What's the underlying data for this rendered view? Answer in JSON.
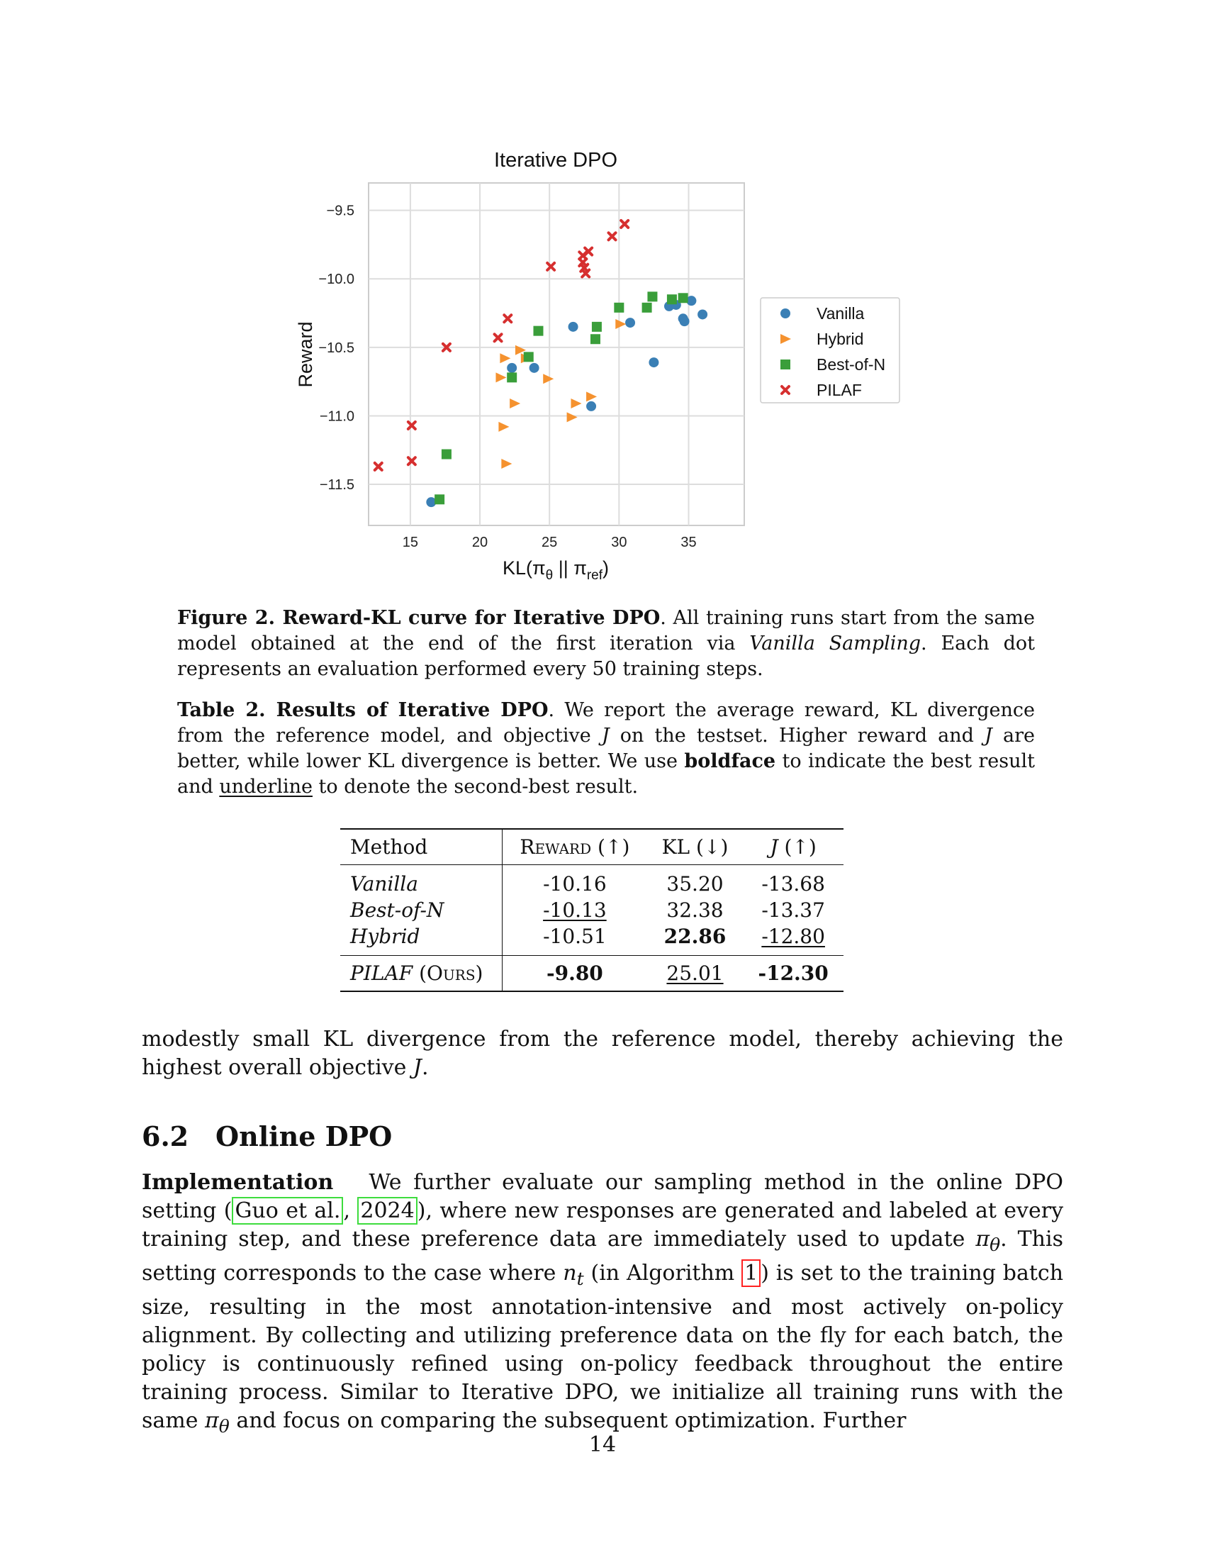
{
  "figure": {
    "chart_data": {
      "type": "scatter",
      "title": "Iterative DPO",
      "xlabel": "KL(πθ || πref)",
      "ylabel": "Reward",
      "xlim": [
        12,
        39
      ],
      "ylim": [
        -11.8,
        -9.3
      ],
      "xticks": [
        15,
        20,
        25,
        30,
        35
      ],
      "yticks": [
        -9.5,
        -10.0,
        -10.5,
        -11.0,
        -11.5
      ],
      "grid": true,
      "legend_position": "right",
      "series": [
        {
          "name": "Vanilla",
          "marker": "circle",
          "color": "#3a7fb5",
          "points": [
            [
              16.5,
              -11.63
            ],
            [
              22.3,
              -10.65
            ],
            [
              23.9,
              -10.65
            ],
            [
              26.7,
              -10.35
            ],
            [
              28.0,
              -10.93
            ],
            [
              30.8,
              -10.32
            ],
            [
              32.5,
              -10.61
            ],
            [
              33.6,
              -10.2
            ],
            [
              34.1,
              -10.19
            ],
            [
              34.6,
              -10.29
            ],
            [
              34.7,
              -10.31
            ],
            [
              35.2,
              -10.16
            ],
            [
              36.0,
              -10.26
            ]
          ]
        },
        {
          "name": "Hybrid",
          "marker": "triangle-right",
          "color": "#f5922f",
          "points": [
            [
              21.5,
              -10.72
            ],
            [
              21.7,
              -11.08
            ],
            [
              21.8,
              -10.58
            ],
            [
              21.9,
              -11.35
            ],
            [
              22.5,
              -10.91
            ],
            [
              22.9,
              -10.52
            ],
            [
              23.3,
              -10.58
            ],
            [
              24.9,
              -10.73
            ],
            [
              26.6,
              -11.01
            ],
            [
              26.9,
              -10.91
            ],
            [
              28.0,
              -10.86
            ],
            [
              30.1,
              -10.33
            ]
          ]
        },
        {
          "name": "Best-of-N",
          "marker": "square",
          "color": "#3a9e3a",
          "points": [
            [
              17.1,
              -11.61
            ],
            [
              17.6,
              -11.28
            ],
            [
              22.3,
              -10.72
            ],
            [
              23.5,
              -10.57
            ],
            [
              24.2,
              -10.38
            ],
            [
              28.3,
              -10.44
            ],
            [
              28.4,
              -10.35
            ],
            [
              30.0,
              -10.21
            ],
            [
              32.0,
              -10.21
            ],
            [
              32.4,
              -10.13
            ],
            [
              33.8,
              -10.15
            ],
            [
              34.6,
              -10.14
            ]
          ]
        },
        {
          "name": "PILAF",
          "marker": "x",
          "color": "#d62f2f",
          "points": [
            [
              12.7,
              -11.37
            ],
            [
              15.1,
              -11.07
            ],
            [
              15.1,
              -11.33
            ],
            [
              17.6,
              -10.5
            ],
            [
              21.3,
              -10.43
            ],
            [
              22.0,
              -10.29
            ],
            [
              25.1,
              -9.91
            ],
            [
              27.4,
              -9.83
            ],
            [
              27.4,
              -9.88
            ],
            [
              27.5,
              -9.92
            ],
            [
              27.6,
              -9.96
            ],
            [
              27.8,
              -9.8
            ],
            [
              29.5,
              -9.69
            ],
            [
              30.4,
              -9.6
            ]
          ]
        }
      ]
    },
    "caption_label": "Figure 2. Reward-KL curve for Iterative DPO",
    "caption_text_1": ". All training runs start from the same model obtained at the end of the first iteration via ",
    "caption_italic": "Vanilla Sampling",
    "caption_text_2": ". Each dot represents an evaluation performed every 50 training steps."
  },
  "table": {
    "caption_label": "Table 2. Results of Iterative DPO",
    "caption_text_1": ". We report the average reward, KL divergence from the reference model, and objective ",
    "caption_var": "J",
    "caption_text_2": " on the testset. Higher reward and ",
    "caption_text_3": " are better, while lower KL divergence is better. We use ",
    "caption_bold_word": "boldface",
    "caption_text_4": " to indicate the best result and ",
    "caption_underline_word": "underline",
    "caption_text_5": " to denote the second-best result.",
    "headers": {
      "method": "Method",
      "reward": "Reward (↑)",
      "kl": "KL (↓)",
      "j_var": "J",
      "j_arrow": " (↑)"
    },
    "rows": [
      {
        "method": "Vanilla",
        "reward": "-10.16",
        "kl": "35.20",
        "j": "-13.68"
      },
      {
        "method": "Best-of-N",
        "reward": "-10.13",
        "kl": "32.38",
        "j": "-13.37"
      },
      {
        "method": "Hybrid",
        "reward": "-10.51",
        "kl": "22.86",
        "j": "-12.80"
      }
    ],
    "ours": {
      "method": "PILAF",
      "suffix": "(Ours)",
      "reward": "-9.80",
      "kl": "25.01",
      "j": "-12.30"
    }
  },
  "text": {
    "para1_a": "modestly small KL divergence from the reference model, thereby achieving the highest overall objective ",
    "para1_var": "J",
    "para1_b": ".",
    "section_number": "6.2",
    "section_title": "Online DPO",
    "para2_heading": "Implementation",
    "para2_a": "We further evaluate our sampling method in the online DPO setting (",
    "cite_author": "Guo et al.",
    "cite_sep": ", ",
    "cite_year": "2024",
    "para2_b": "), where new responses are generated and labeled at every training step, and these preference data are immediately used to update ",
    "pi_theta_1": "πθ",
    "para2_c": ". This setting corresponds to the case where ",
    "n_t": "nt",
    "para2_d": " (in Algorithm ",
    "alg_ref": "1",
    "para2_e": ") is set to the training batch size, resulting in the most annotation-intensive and most actively on-policy alignment. By collecting and utilizing preference data on the fly for each batch, the policy is continuously refined using on-policy feedback throughout the entire training process. Similar to Iterative DPO, we initialize all training runs with the same ",
    "pi_theta_2": "πθ",
    "para2_f": " and focus on comparing the subsequent optimization. Further"
  },
  "page_number": "14"
}
